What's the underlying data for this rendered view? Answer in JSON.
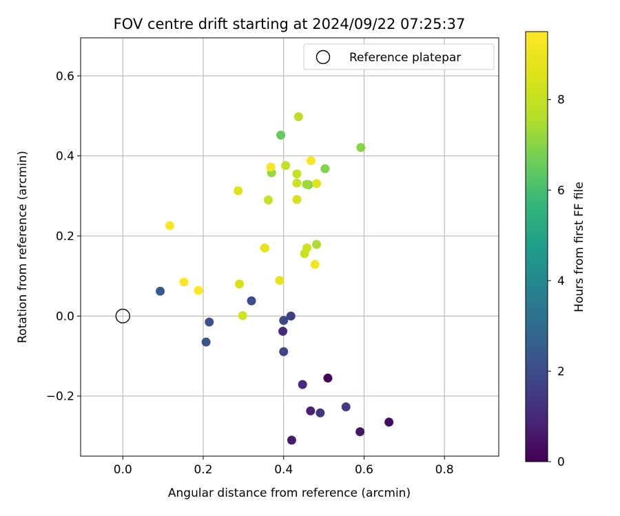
{
  "chart_data": {
    "type": "scatter",
    "title": "FOV centre drift starting at 2024/09/22 07:25:37",
    "xlabel": "Angular distance from reference (arcmin)",
    "ylabel": "Rotation from reference (arcmin)",
    "xlim": [
      -0.105,
      0.935
    ],
    "ylim": [
      -0.35,
      0.695
    ],
    "xticks": [
      0.0,
      0.2,
      0.4,
      0.6,
      0.8
    ],
    "yticks": [
      -0.2,
      0.0,
      0.2,
      0.4,
      0.6
    ],
    "xtick_labels": [
      "0.0",
      "0.2",
      "0.4",
      "0.6",
      "0.8"
    ],
    "ytick_labels": [
      "−0.2",
      "0.0",
      "0.2",
      "0.4",
      "0.6"
    ],
    "grid": true,
    "legend": {
      "position": "top-right",
      "entries": [
        "Reference platepar"
      ]
    },
    "reference_point": {
      "x": 0.0,
      "y": 0.0,
      "label": "Reference platepar"
    },
    "colorbar": {
      "label": "Hours from first FF file",
      "colormap": "viridis",
      "range": [
        0,
        9.5
      ],
      "ticks": [
        0,
        2,
        4,
        6,
        8
      ],
      "tick_labels": [
        "0",
        "2",
        "4",
        "6",
        "8"
      ]
    },
    "points": [
      {
        "x": 0.51,
        "y": -0.155,
        "hours": 0.1
      },
      {
        "x": 0.662,
        "y": -0.265,
        "hours": 0.3
      },
      {
        "x": 0.59,
        "y": -0.289,
        "hours": 0.5
      },
      {
        "x": 0.42,
        "y": -0.31,
        "hours": 0.6
      },
      {
        "x": 0.467,
        "y": -0.237,
        "hours": 0.8
      },
      {
        "x": 0.447,
        "y": -0.171,
        "hours": 1.0
      },
      {
        "x": 0.398,
        "y": -0.038,
        "hours": 1.1
      },
      {
        "x": 0.491,
        "y": -0.242,
        "hours": 1.3
      },
      {
        "x": 0.555,
        "y": -0.227,
        "hours": 1.5
      },
      {
        "x": 0.418,
        "y": 0.0,
        "hours": 1.6
      },
      {
        "x": 0.4,
        "y": -0.089,
        "hours": 1.8
      },
      {
        "x": 0.4,
        "y": -0.011,
        "hours": 1.9
      },
      {
        "x": 0.32,
        "y": 0.038,
        "hours": 2.0
      },
      {
        "x": 0.215,
        "y": -0.015,
        "hours": 2.1
      },
      {
        "x": 0.207,
        "y": -0.065,
        "hours": 2.3
      },
      {
        "x": 0.093,
        "y": 0.062,
        "hours": 2.4
      },
      {
        "x": 0.393,
        "y": 0.452,
        "hours": 6.5
      },
      {
        "x": 0.503,
        "y": 0.368,
        "hours": 6.9
      },
      {
        "x": 0.462,
        "y": 0.328,
        "hours": 6.8
      },
      {
        "x": 0.592,
        "y": 0.421,
        "hours": 7.0
      },
      {
        "x": 0.37,
        "y": 0.358,
        "hours": 7.2
      },
      {
        "x": 0.457,
        "y": 0.329,
        "hours": 7.3
      },
      {
        "x": 0.482,
        "y": 0.179,
        "hours": 7.5
      },
      {
        "x": 0.437,
        "y": 0.498,
        "hours": 7.8
      },
      {
        "x": 0.405,
        "y": 0.376,
        "hours": 7.9
      },
      {
        "x": 0.433,
        "y": 0.355,
        "hours": 8.0
      },
      {
        "x": 0.433,
        "y": 0.332,
        "hours": 8.1
      },
      {
        "x": 0.362,
        "y": 0.29,
        "hours": 8.0
      },
      {
        "x": 0.452,
        "y": 0.156,
        "hours": 8.1
      },
      {
        "x": 0.458,
        "y": 0.17,
        "hours": 8.2
      },
      {
        "x": 0.298,
        "y": 0.001,
        "hours": 8.3
      },
      {
        "x": 0.29,
        "y": 0.08,
        "hours": 8.4
      },
      {
        "x": 0.433,
        "y": 0.291,
        "hours": 8.4
      },
      {
        "x": 0.482,
        "y": 0.331,
        "hours": 8.6
      },
      {
        "x": 0.287,
        "y": 0.313,
        "hours": 8.6
      },
      {
        "x": 0.353,
        "y": 0.17,
        "hours": 8.8
      },
      {
        "x": 0.39,
        "y": 0.089,
        "hours": 8.8
      },
      {
        "x": 0.478,
        "y": 0.129,
        "hours": 9.2
      },
      {
        "x": 0.368,
        "y": 0.372,
        "hours": 9.3
      },
      {
        "x": 0.468,
        "y": 0.388,
        "hours": 9.4
      },
      {
        "x": 0.117,
        "y": 0.226,
        "hours": 9.4
      },
      {
        "x": 0.152,
        "y": 0.085,
        "hours": 9.5
      },
      {
        "x": 0.188,
        "y": 0.064,
        "hours": 9.5
      }
    ]
  }
}
